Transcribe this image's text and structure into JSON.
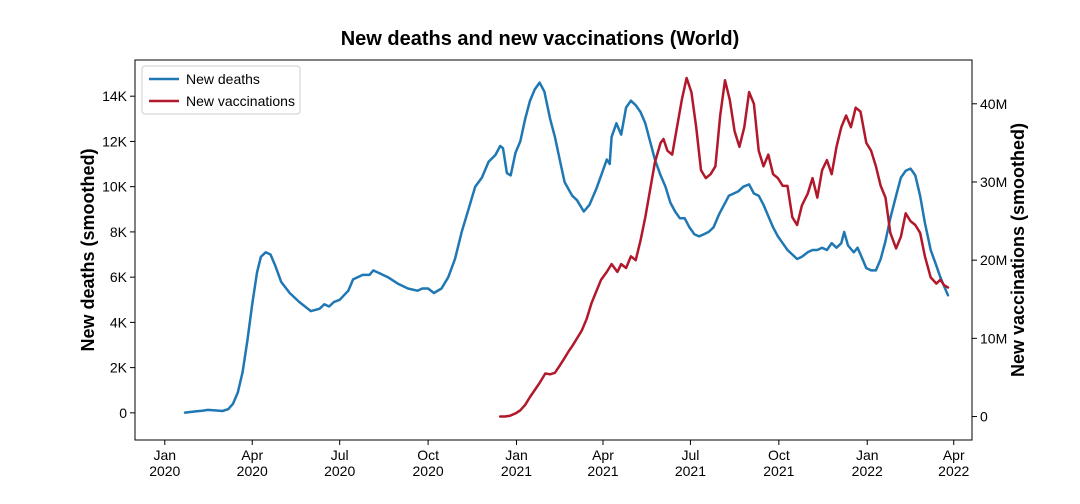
{
  "chart_data": {
    "type": "line",
    "title": "New deaths and new vaccinations (World)",
    "ylabel_left": "New deaths (smoothed)",
    "ylabel_right": "New vaccinations (smoothed)",
    "xlim": [
      "2019-12-01",
      "2022-04-20"
    ],
    "ylim_left": [
      -1200,
      15600
    ],
    "ylim_right": [
      -3000000,
      45600000
    ],
    "x_ticks": [
      {
        "date": "2020-01-01",
        "line1": "Jan",
        "line2": "2020"
      },
      {
        "date": "2020-04-01",
        "line1": "Apr",
        "line2": "2020"
      },
      {
        "date": "2020-07-01",
        "line1": "Jul",
        "line2": "2020"
      },
      {
        "date": "2020-10-01",
        "line1": "Oct",
        "line2": "2020"
      },
      {
        "date": "2021-01-01",
        "line1": "Jan",
        "line2": "2021"
      },
      {
        "date": "2021-04-01",
        "line1": "Apr",
        "line2": "2021"
      },
      {
        "date": "2021-07-01",
        "line1": "Jul",
        "line2": "2021"
      },
      {
        "date": "2021-10-01",
        "line1": "Oct",
        "line2": "2021"
      },
      {
        "date": "2022-01-01",
        "line1": "Jan",
        "line2": "2022"
      },
      {
        "date": "2022-04-01",
        "line1": "Apr",
        "line2": "2022"
      }
    ],
    "y_ticks_left": [
      {
        "value": 0,
        "label": "0"
      },
      {
        "value": 2000,
        "label": "2K"
      },
      {
        "value": 4000,
        "label": "4K"
      },
      {
        "value": 6000,
        "label": "6K"
      },
      {
        "value": 8000,
        "label": "8K"
      },
      {
        "value": 10000,
        "label": "10K"
      },
      {
        "value": 12000,
        "label": "12K"
      },
      {
        "value": 14000,
        "label": "14K"
      }
    ],
    "y_ticks_right": [
      {
        "value": 0,
        "label": "0"
      },
      {
        "value": 10000000,
        "label": "10M"
      },
      {
        "value": 20000000,
        "label": "20M"
      },
      {
        "value": 30000000,
        "label": "30M"
      },
      {
        "value": 40000000,
        "label": "40M"
      }
    ],
    "legend_position": "top-left",
    "grid": false,
    "series": [
      {
        "name": "New deaths",
        "axis": "left",
        "color": "#1f77b4",
        "points": [
          [
            "2020-01-22",
            10
          ],
          [
            "2020-02-01",
            60
          ],
          [
            "2020-02-10",
            100
          ],
          [
            "2020-02-15",
            130
          ],
          [
            "2020-02-22",
            110
          ],
          [
            "2020-03-01",
            80
          ],
          [
            "2020-03-07",
            160
          ],
          [
            "2020-03-12",
            400
          ],
          [
            "2020-03-17",
            900
          ],
          [
            "2020-03-22",
            1800
          ],
          [
            "2020-03-27",
            3200
          ],
          [
            "2020-04-01",
            4800
          ],
          [
            "2020-04-06",
            6200
          ],
          [
            "2020-04-10",
            6900
          ],
          [
            "2020-04-15",
            7100
          ],
          [
            "2020-04-20",
            7000
          ],
          [
            "2020-04-25",
            6500
          ],
          [
            "2020-05-01",
            5800
          ],
          [
            "2020-05-10",
            5300
          ],
          [
            "2020-05-20",
            4900
          ],
          [
            "2020-06-01",
            4500
          ],
          [
            "2020-06-10",
            4600
          ],
          [
            "2020-06-15",
            4800
          ],
          [
            "2020-06-20",
            4700
          ],
          [
            "2020-06-25",
            4900
          ],
          [
            "2020-07-01",
            5000
          ],
          [
            "2020-07-10",
            5400
          ],
          [
            "2020-07-15",
            5900
          ],
          [
            "2020-07-20",
            6000
          ],
          [
            "2020-07-25",
            6100
          ],
          [
            "2020-08-01",
            6100
          ],
          [
            "2020-08-05",
            6300
          ],
          [
            "2020-08-10",
            6200
          ],
          [
            "2020-08-20",
            6000
          ],
          [
            "2020-08-31",
            5700
          ],
          [
            "2020-09-10",
            5500
          ],
          [
            "2020-09-20",
            5400
          ],
          [
            "2020-09-25",
            5500
          ],
          [
            "2020-10-01",
            5500
          ],
          [
            "2020-10-07",
            5300
          ],
          [
            "2020-10-15",
            5500
          ],
          [
            "2020-10-22",
            6000
          ],
          [
            "2020-10-29",
            6800
          ],
          [
            "2020-11-05",
            8000
          ],
          [
            "2020-11-12",
            9000
          ],
          [
            "2020-11-19",
            10000
          ],
          [
            "2020-11-26",
            10400
          ],
          [
            "2020-12-03",
            11100
          ],
          [
            "2020-12-10",
            11400
          ],
          [
            "2020-12-15",
            11800
          ],
          [
            "2020-12-18",
            11700
          ],
          [
            "2020-12-22",
            10600
          ],
          [
            "2020-12-26",
            10500
          ],
          [
            "2020-12-31",
            11500
          ],
          [
            "2021-01-05",
            12000
          ],
          [
            "2021-01-10",
            13000
          ],
          [
            "2021-01-15",
            13800
          ],
          [
            "2021-01-20",
            14300
          ],
          [
            "2021-01-25",
            14600
          ],
          [
            "2021-01-30",
            14200
          ],
          [
            "2021-02-05",
            13000
          ],
          [
            "2021-02-10",
            12200
          ],
          [
            "2021-02-15",
            11200
          ],
          [
            "2021-02-20",
            10200
          ],
          [
            "2021-02-28",
            9600
          ],
          [
            "2021-03-05",
            9400
          ],
          [
            "2021-03-12",
            8900
          ],
          [
            "2021-03-18",
            9200
          ],
          [
            "2021-03-25",
            9900
          ],
          [
            "2021-03-31",
            10600
          ],
          [
            "2021-04-05",
            11200
          ],
          [
            "2021-04-08",
            11000
          ],
          [
            "2021-04-10",
            12200
          ],
          [
            "2021-04-15",
            12800
          ],
          [
            "2021-04-20",
            12300
          ],
          [
            "2021-04-25",
            13500
          ],
          [
            "2021-04-30",
            13800
          ],
          [
            "2021-05-05",
            13600
          ],
          [
            "2021-05-10",
            13300
          ],
          [
            "2021-05-15",
            12800
          ],
          [
            "2021-05-20",
            12000
          ],
          [
            "2021-05-25",
            11200
          ],
          [
            "2021-05-31",
            10500
          ],
          [
            "2021-06-05",
            10000
          ],
          [
            "2021-06-10",
            9300
          ],
          [
            "2021-06-15",
            8900
          ],
          [
            "2021-06-20",
            8600
          ],
          [
            "2021-06-25",
            8600
          ],
          [
            "2021-06-30",
            8200
          ],
          [
            "2021-07-05",
            7900
          ],
          [
            "2021-07-10",
            7800
          ],
          [
            "2021-07-15",
            7900
          ],
          [
            "2021-07-20",
            8000
          ],
          [
            "2021-07-25",
            8200
          ],
          [
            "2021-07-31",
            8800
          ],
          [
            "2021-08-05",
            9200
          ],
          [
            "2021-08-10",
            9600
          ],
          [
            "2021-08-20",
            9800
          ],
          [
            "2021-08-25",
            10000
          ],
          [
            "2021-08-31",
            10100
          ],
          [
            "2021-09-05",
            9700
          ],
          [
            "2021-09-10",
            9600
          ],
          [
            "2021-09-15",
            9200
          ],
          [
            "2021-09-20",
            8700
          ],
          [
            "2021-09-25",
            8200
          ],
          [
            "2021-09-30",
            7800
          ],
          [
            "2021-10-05",
            7500
          ],
          [
            "2021-10-10",
            7200
          ],
          [
            "2021-10-15",
            7000
          ],
          [
            "2021-10-20",
            6800
          ],
          [
            "2021-10-25",
            6900
          ],
          [
            "2021-10-31",
            7100
          ],
          [
            "2021-11-05",
            7200
          ],
          [
            "2021-11-10",
            7200
          ],
          [
            "2021-11-15",
            7300
          ],
          [
            "2021-11-20",
            7200
          ],
          [
            "2021-11-25",
            7500
          ],
          [
            "2021-11-30",
            7300
          ],
          [
            "2021-12-05",
            7500
          ],
          [
            "2021-12-08",
            8000
          ],
          [
            "2021-12-12",
            7400
          ],
          [
            "2021-12-18",
            7100
          ],
          [
            "2021-12-22",
            7300
          ],
          [
            "2021-12-26",
            6900
          ],
          [
            "2021-12-31",
            6400
          ],
          [
            "2022-01-05",
            6300
          ],
          [
            "2022-01-10",
            6300
          ],
          [
            "2022-01-15",
            6800
          ],
          [
            "2022-01-20",
            7600
          ],
          [
            "2022-01-25",
            8600
          ],
          [
            "2022-01-31",
            9600
          ],
          [
            "2022-02-05",
            10400
          ],
          [
            "2022-02-10",
            10700
          ],
          [
            "2022-02-15",
            10800
          ],
          [
            "2022-02-20",
            10500
          ],
          [
            "2022-02-25",
            9600
          ],
          [
            "2022-03-02",
            8400
          ],
          [
            "2022-03-08",
            7200
          ],
          [
            "2022-03-14",
            6500
          ],
          [
            "2022-03-18",
            6000
          ],
          [
            "2022-03-22",
            5600
          ],
          [
            "2022-03-26",
            5200
          ]
        ]
      },
      {
        "name": "New vaccinations",
        "axis": "right",
        "color": "#b2182b",
        "points": [
          [
            "2020-12-15",
            0
          ],
          [
            "2020-12-20",
            0
          ],
          [
            "2020-12-25",
            100000
          ],
          [
            "2020-12-31",
            400000
          ],
          [
            "2021-01-05",
            800000
          ],
          [
            "2021-01-10",
            1500000
          ],
          [
            "2021-01-15",
            2500000
          ],
          [
            "2021-01-20",
            3400000
          ],
          [
            "2021-01-25",
            4300000
          ],
          [
            "2021-01-31",
            5500000
          ],
          [
            "2021-02-05",
            5400000
          ],
          [
            "2021-02-10",
            5600000
          ],
          [
            "2021-02-15",
            6500000
          ],
          [
            "2021-02-20",
            7500000
          ],
          [
            "2021-02-25",
            8500000
          ],
          [
            "2021-02-28",
            9000000
          ],
          [
            "2021-03-05",
            10000000
          ],
          [
            "2021-03-10",
            11000000
          ],
          [
            "2021-03-15",
            12500000
          ],
          [
            "2021-03-20",
            14500000
          ],
          [
            "2021-03-25",
            16000000
          ],
          [
            "2021-03-30",
            17500000
          ],
          [
            "2021-04-05",
            18500000
          ],
          [
            "2021-04-10",
            19500000
          ],
          [
            "2021-04-13",
            19000000
          ],
          [
            "2021-04-16",
            18500000
          ],
          [
            "2021-04-20",
            19500000
          ],
          [
            "2021-04-25",
            19000000
          ],
          [
            "2021-04-30",
            20500000
          ],
          [
            "2021-05-05",
            20000000
          ],
          [
            "2021-05-10",
            22500000
          ],
          [
            "2021-05-15",
            25500000
          ],
          [
            "2021-05-20",
            29000000
          ],
          [
            "2021-05-25",
            32500000
          ],
          [
            "2021-05-31",
            35000000
          ],
          [
            "2021-06-03",
            35500000
          ],
          [
            "2021-06-07",
            34000000
          ],
          [
            "2021-06-12",
            33500000
          ],
          [
            "2021-06-17",
            37000000
          ],
          [
            "2021-06-22",
            40500000
          ],
          [
            "2021-06-27",
            43300000
          ],
          [
            "2021-07-02",
            41500000
          ],
          [
            "2021-07-07",
            37000000
          ],
          [
            "2021-07-12",
            31500000
          ],
          [
            "2021-07-17",
            30500000
          ],
          [
            "2021-07-22",
            31000000
          ],
          [
            "2021-07-27",
            32000000
          ],
          [
            "2021-08-01",
            38500000
          ],
          [
            "2021-08-06",
            43000000
          ],
          [
            "2021-08-11",
            40500000
          ],
          [
            "2021-08-16",
            36500000
          ],
          [
            "2021-08-21",
            34500000
          ],
          [
            "2021-08-26",
            37000000
          ],
          [
            "2021-08-31",
            41500000
          ],
          [
            "2021-09-05",
            40000000
          ],
          [
            "2021-09-10",
            34000000
          ],
          [
            "2021-09-15",
            32000000
          ],
          [
            "2021-09-20",
            33500000
          ],
          [
            "2021-09-25",
            31000000
          ],
          [
            "2021-09-30",
            30500000
          ],
          [
            "2021-10-05",
            29500000
          ],
          [
            "2021-10-10",
            29500000
          ],
          [
            "2021-10-15",
            25500000
          ],
          [
            "2021-10-20",
            24500000
          ],
          [
            "2021-10-25",
            27000000
          ],
          [
            "2021-10-31",
            28500000
          ],
          [
            "2021-11-05",
            30500000
          ],
          [
            "2021-11-10",
            28000000
          ],
          [
            "2021-11-15",
            31500000
          ],
          [
            "2021-11-20",
            32800000
          ],
          [
            "2021-11-25",
            31000000
          ],
          [
            "2021-11-30",
            34500000
          ],
          [
            "2021-12-05",
            37000000
          ],
          [
            "2021-12-10",
            38500000
          ],
          [
            "2021-12-15",
            37000000
          ],
          [
            "2021-12-20",
            39500000
          ],
          [
            "2021-12-25",
            39000000
          ],
          [
            "2021-12-31",
            35000000
          ],
          [
            "2022-01-05",
            34000000
          ],
          [
            "2022-01-10",
            32000000
          ],
          [
            "2022-01-15",
            29500000
          ],
          [
            "2022-01-20",
            28000000
          ],
          [
            "2022-01-25",
            23500000
          ],
          [
            "2022-01-31",
            21500000
          ],
          [
            "2022-02-05",
            23000000
          ],
          [
            "2022-02-10",
            26000000
          ],
          [
            "2022-02-15",
            25000000
          ],
          [
            "2022-02-20",
            24500000
          ],
          [
            "2022-02-25",
            23500000
          ],
          [
            "2022-03-02",
            20500000
          ],
          [
            "2022-03-08",
            17800000
          ],
          [
            "2022-03-14",
            17000000
          ],
          [
            "2022-03-18",
            17500000
          ],
          [
            "2022-03-22",
            16800000
          ],
          [
            "2022-03-26",
            16500000
          ]
        ]
      }
    ]
  }
}
